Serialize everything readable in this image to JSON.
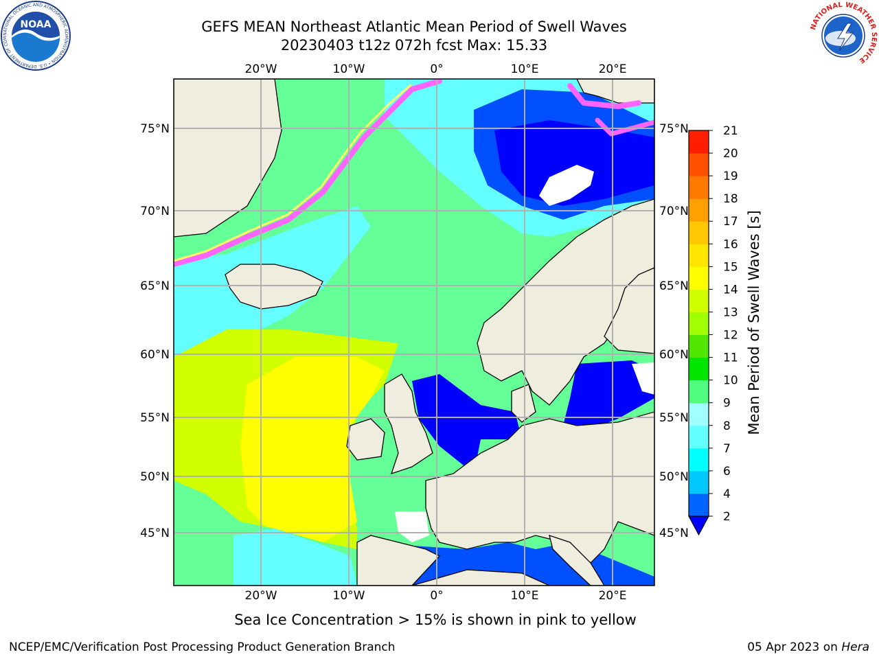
{
  "title": {
    "line1": "GEFS MEAN Northeast Atlantic Mean Period of Swell Waves",
    "line2": "20230403 t12z 072h fcst   Max: 15.33"
  },
  "note": "Sea Ice Concentration > 15% is shown in pink to yellow",
  "footer": {
    "left": "NCEP/EMC/Verification Post Processing Product Generation Branch",
    "date": "05 Apr 2023 on ",
    "machine": "Hera"
  },
  "logos": {
    "noara_text": "NOAA",
    "noaa_ring": "NATIONAL OCEANIC AND ATMOSPHERIC ADMINISTRATION • U.S. DEPARTMENT OF COMMERCE",
    "nws_ring": "NATIONAL WEATHER SERVICE"
  },
  "map": {
    "lon_labels": [
      "20°W",
      "10°W",
      "0°",
      "10°E",
      "20°E"
    ],
    "lat_labels": [
      "75°N",
      "70°N",
      "65°N",
      "60°N",
      "55°N",
      "50°N",
      "45°N"
    ],
    "extent": {
      "lon_min": -30,
      "lon_max": 25,
      "lat_min": 40,
      "lat_max": 78
    },
    "colors": {
      "land": "#efedde",
      "grid": "#b0b0b0",
      "coast": "#000000"
    }
  },
  "colorbar": {
    "label": "Mean Period of Swell Waves [s]",
    "ticks": [
      "2",
      "4",
      "6",
      "7",
      "8",
      "9",
      "10",
      "11",
      "12",
      "13",
      "14",
      "15",
      "16",
      "17",
      "18",
      "19",
      "20",
      "21"
    ],
    "colors": [
      "#0064ff",
      "#00c8ff",
      "#00ffff",
      "#64ffff",
      "#a0ffff",
      "#50ff80",
      "#00e600",
      "#50e600",
      "#a0ff00",
      "#d2ff00",
      "#ffff00",
      "#ffe600",
      "#ffc800",
      "#ffa000",
      "#ff7800",
      "#ff5000",
      "#ff1e00"
    ],
    "extend_color": "#0000ff"
  }
}
